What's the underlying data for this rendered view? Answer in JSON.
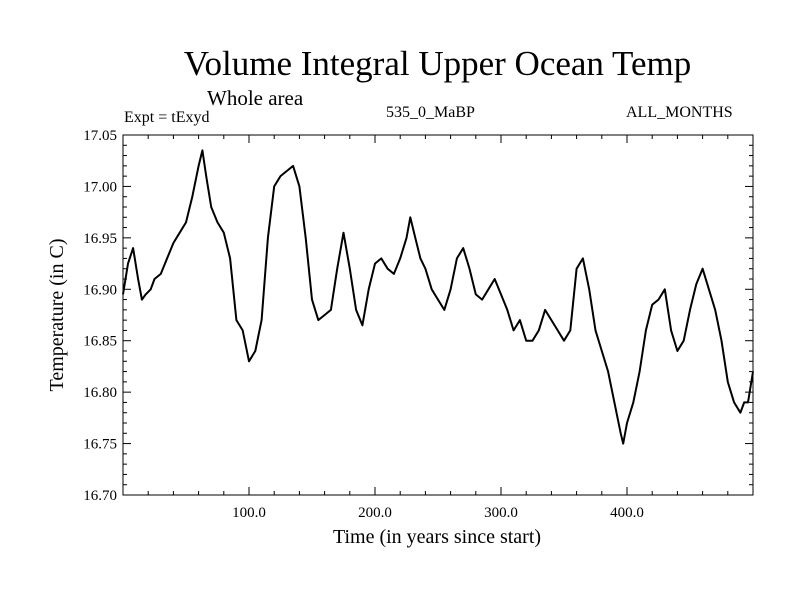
{
  "header": {
    "title": "Volume Integral Upper Ocean Temp",
    "subtitle": "Whole area",
    "experiment": "Expt = tExyd",
    "period": "535_0_MaBP",
    "months": "ALL_MONTHS"
  },
  "chart_data": {
    "type": "line",
    "title": "Volume Integral Upper Ocean Temp",
    "subtitle": "Whole area",
    "xlabel": "Time (in years since start)",
    "ylabel": "Temperature (in C)",
    "xlim": [
      0,
      500
    ],
    "ylim": [
      16.7,
      17.05
    ],
    "xticks": [
      100,
      200,
      300,
      400
    ],
    "xtick_labels": [
      "100.0",
      "200.0",
      "300.0",
      "400.0"
    ],
    "yticks": [
      16.7,
      16.75,
      16.8,
      16.85,
      16.9,
      16.95,
      17.0,
      17.05
    ],
    "ytick_labels": [
      "16.70",
      "16.75",
      "16.80",
      "16.85",
      "16.90",
      "16.95",
      "17.00",
      "17.05"
    ],
    "grid": false,
    "line_color": "#000000",
    "series": [
      {
        "x": [
          0,
          4,
          8,
          12,
          15,
          18,
          22,
          25,
          30,
          35,
          40,
          45,
          50,
          55,
          60,
          63,
          66,
          70,
          75,
          80,
          85,
          90,
          95,
          100,
          105,
          110,
          115,
          120,
          125,
          130,
          135,
          140,
          145,
          150,
          155,
          160,
          165,
          170,
          175,
          180,
          185,
          190,
          195,
          200,
          205,
          210,
          215,
          220,
          225,
          228,
          232,
          236,
          240,
          245,
          250,
          255,
          260,
          265,
          270,
          275,
          280,
          285,
          290,
          295,
          300,
          305,
          310,
          315,
          320,
          325,
          330,
          335,
          340,
          345,
          350,
          355,
          360,
          365,
          370,
          375,
          380,
          385,
          390,
          395,
          397,
          400,
          405,
          410,
          415,
          420,
          425,
          430,
          435,
          440,
          445,
          450,
          455,
          460,
          465,
          470,
          475,
          480,
          485,
          490,
          493,
          496,
          500
        ],
        "y": [
          16.895,
          16.925,
          16.94,
          16.91,
          16.89,
          16.895,
          16.9,
          16.91,
          16.915,
          16.93,
          16.945,
          16.955,
          16.965,
          16.99,
          17.02,
          17.035,
          17.01,
          16.98,
          16.965,
          16.955,
          16.93,
          16.87,
          16.86,
          16.83,
          16.84,
          16.87,
          16.95,
          17.0,
          17.01,
          17.015,
          17.02,
          17.0,
          16.95,
          16.89,
          16.87,
          16.875,
          16.88,
          16.92,
          16.955,
          16.92,
          16.88,
          16.865,
          16.9,
          16.925,
          16.93,
          16.92,
          16.915,
          16.93,
          16.95,
          16.97,
          16.95,
          16.93,
          16.92,
          16.9,
          16.89,
          16.88,
          16.9,
          16.93,
          16.94,
          16.92,
          16.895,
          16.89,
          16.9,
          16.91,
          16.895,
          16.88,
          16.86,
          16.87,
          16.85,
          16.85,
          16.86,
          16.88,
          16.87,
          16.86,
          16.85,
          16.86,
          16.92,
          16.93,
          16.9,
          16.86,
          16.84,
          16.82,
          16.79,
          16.76,
          16.75,
          16.77,
          16.79,
          16.82,
          16.86,
          16.885,
          16.89,
          16.9,
          16.86,
          16.84,
          16.85,
          16.88,
          16.905,
          16.92,
          16.9,
          16.88,
          16.85,
          16.81,
          16.79,
          16.78,
          16.79,
          16.79,
          16.82
        ]
      }
    ]
  }
}
